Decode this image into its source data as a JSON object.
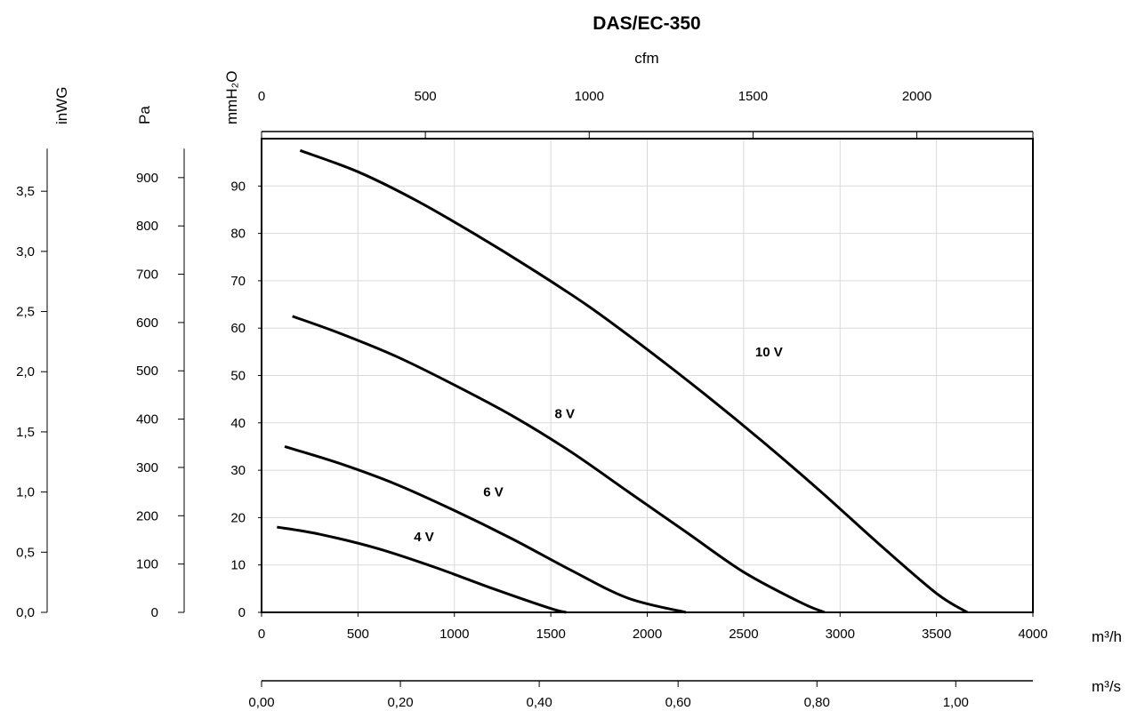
{
  "chart_data": {
    "type": "line",
    "title": "DAS/EC-350",
    "x_axis_bottom": {
      "label": "m³/h",
      "range": [
        0,
        4000
      ],
      "ticks": [
        0,
        500,
        1000,
        1500,
        2000,
        2500,
        3000,
        3500,
        4000
      ],
      "tick_labels": [
        "0",
        "500",
        "1000",
        "1500",
        "2000",
        "2500",
        "3000",
        "3500",
        "4000"
      ]
    },
    "x_axis_top": {
      "label": "cfm",
      "ticks": [
        0,
        500,
        1000,
        1500,
        2000
      ],
      "tick_labels": [
        "0",
        "500",
        "1000",
        "1500",
        "2000"
      ]
    },
    "x_axis_bottom2": {
      "label": "m³/s",
      "ticks": [
        0,
        0.2,
        0.4,
        0.6,
        0.8,
        1.0
      ],
      "tick_labels": [
        "0,00",
        "0,20",
        "0,40",
        "0,60",
        "0,80",
        "1,00"
      ]
    },
    "y_axis_main": {
      "label": "mmH₂O",
      "range": [
        0,
        100
      ],
      "ticks": [
        0,
        10,
        20,
        30,
        40,
        50,
        60,
        70,
        80,
        90
      ],
      "tick_labels": [
        "0",
        "10",
        "20",
        "30",
        "40",
        "50",
        "60",
        "70",
        "80",
        "90"
      ]
    },
    "y_axis_pa": {
      "label": "Pa",
      "ticks": [
        0,
        100,
        200,
        300,
        400,
        500,
        600,
        700,
        800,
        900
      ],
      "tick_labels": [
        "0",
        "100",
        "200",
        "300",
        "400",
        "500",
        "600",
        "700",
        "800",
        "900"
      ]
    },
    "y_axis_inwg": {
      "label": "inWG",
      "ticks": [
        0,
        0.5,
        1.0,
        1.5,
        2.0,
        2.5,
        3.0,
        3.5
      ],
      "tick_labels": [
        "0,0",
        "0,5",
        "1,0",
        "1,5",
        "2,0",
        "2,5",
        "3,0",
        "3,5"
      ]
    },
    "grid": true,
    "series": [
      {
        "name": "10 V",
        "x": [
          200,
          500,
          800,
          1100,
          1400,
          1700,
          2000,
          2300,
          2600,
          2900,
          3200,
          3500,
          3660
        ],
        "y": [
          97.5,
          93.0,
          87.0,
          80.0,
          72.5,
          64.5,
          55.5,
          46.0,
          36.0,
          25.5,
          14.5,
          4.0,
          0
        ]
      },
      {
        "name": "8 V",
        "x": [
          160,
          400,
          700,
          1000,
          1300,
          1600,
          1900,
          2200,
          2500,
          2800,
          2920
        ],
        "y": [
          62.5,
          59.0,
          54.0,
          48.0,
          41.5,
          34.0,
          25.5,
          17.0,
          8.5,
          2.0,
          0
        ]
      },
      {
        "name": "6 V",
        "x": [
          120,
          400,
          700,
          1000,
          1300,
          1600,
          1900,
          2200
        ],
        "y": [
          35.0,
          31.5,
          27.0,
          21.5,
          15.5,
          9.0,
          3.0,
          0
        ]
      },
      {
        "name": "4 V",
        "x": [
          80,
          300,
          600,
          900,
          1200,
          1500,
          1580
        ],
        "y": [
          18.0,
          16.5,
          13.5,
          9.5,
          5.0,
          0.8,
          0
        ]
      }
    ]
  }
}
